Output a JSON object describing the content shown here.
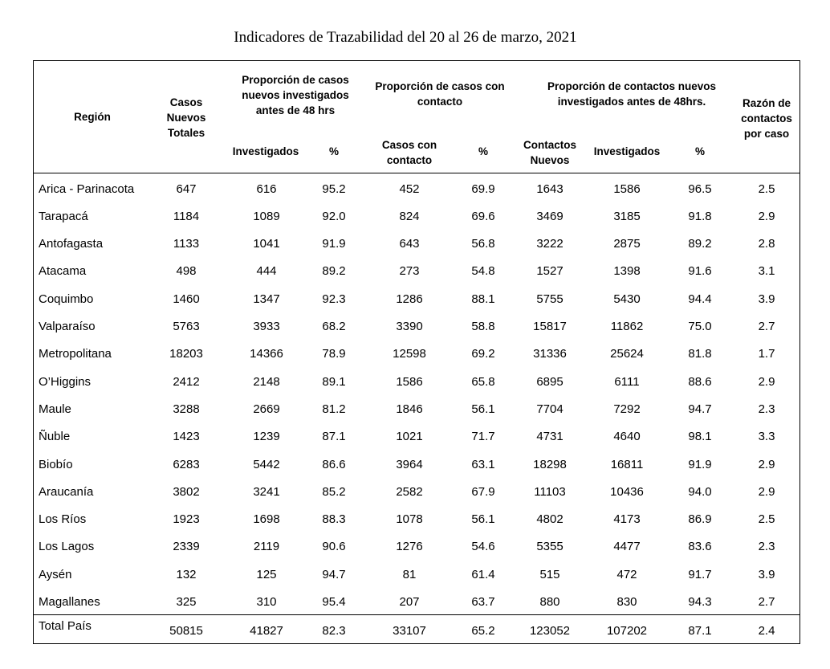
{
  "title": "Indicadores de Trazabilidad del 20 al 26 de marzo, 2021",
  "headers": {
    "region": "Región",
    "casos_totales": "Casos\nNuevos\nTotales",
    "prop_investigados": "Proporción de casos\nnuevos investigados\nantes de 48 hrs",
    "prop_contacto": "Proporción de casos con\ncontacto",
    "prop_contactos": "Proporción de contactos nuevos\ninvestigados antes de 48hrs.",
    "razon": "Razón de\ncontactos\npor caso",
    "sub_investigados_1": "Investigados",
    "sub_pct_1": "%",
    "sub_casos_contacto": "Casos con\ncontacto",
    "sub_pct_2": "%",
    "sub_contactos_nuevos": "Contactos\nNuevos",
    "sub_investigados_2": "Investigados",
    "sub_pct_3": "%"
  },
  "rows": [
    [
      "Arica - Parinacota",
      "647",
      "616",
      "95.2",
      "452",
      "69.9",
      "1643",
      "1586",
      "96.5",
      "2.5"
    ],
    [
      "Tarapacá",
      "1184",
      "1089",
      "92.0",
      "824",
      "69.6",
      "3469",
      "3185",
      "91.8",
      "2.9"
    ],
    [
      "Antofagasta",
      "1133",
      "1041",
      "91.9",
      "643",
      "56.8",
      "3222",
      "2875",
      "89.2",
      "2.8"
    ],
    [
      "Atacama",
      "498",
      "444",
      "89.2",
      "273",
      "54.8",
      "1527",
      "1398",
      "91.6",
      "3.1"
    ],
    [
      "Coquimbo",
      "1460",
      "1347",
      "92.3",
      "1286",
      "88.1",
      "5755",
      "5430",
      "94.4",
      "3.9"
    ],
    [
      "Valparaíso",
      "5763",
      "3933",
      "68.2",
      "3390",
      "58.8",
      "15817",
      "11862",
      "75.0",
      "2.7"
    ],
    [
      "Metropolitana",
      "18203",
      "14366",
      "78.9",
      "12598",
      "69.2",
      "31336",
      "25624",
      "81.8",
      "1.7"
    ],
    [
      "O’Higgins",
      "2412",
      "2148",
      "89.1",
      "1586",
      "65.8",
      "6895",
      "6111",
      "88.6",
      "2.9"
    ],
    [
      "Maule",
      "3288",
      "2669",
      "81.2",
      "1846",
      "56.1",
      "7704",
      "7292",
      "94.7",
      "2.3"
    ],
    [
      "Ñuble",
      "1423",
      "1239",
      "87.1",
      "1021",
      "71.7",
      "4731",
      "4640",
      "98.1",
      "3.3"
    ],
    [
      "Biobío",
      "6283",
      "5442",
      "86.6",
      "3964",
      "63.1",
      "18298",
      "16811",
      "91.9",
      "2.9"
    ],
    [
      "Araucanía",
      "3802",
      "3241",
      "85.2",
      "2582",
      "67.9",
      "11103",
      "10436",
      "94.0",
      "2.9"
    ],
    [
      "Los Ríos",
      "1923",
      "1698",
      "88.3",
      "1078",
      "56.1",
      "4802",
      "4173",
      "86.9",
      "2.5"
    ],
    [
      "Los Lagos",
      "2339",
      "2119",
      "90.6",
      "1276",
      "54.6",
      "5355",
      "4477",
      "83.6",
      "2.3"
    ],
    [
      "Aysén",
      "132",
      "125",
      "94.7",
      "81",
      "61.4",
      "515",
      "472",
      "91.7",
      "3.9"
    ],
    [
      "Magallanes",
      "325",
      "310",
      "95.4",
      "207",
      "63.7",
      "880",
      "830",
      "94.3",
      "2.7"
    ]
  ],
  "total": [
    "Total País",
    "50815",
    "41827",
    "82.3",
    "33107",
    "65.2",
    "123052",
    "107202",
    "87.1",
    "2.4"
  ]
}
